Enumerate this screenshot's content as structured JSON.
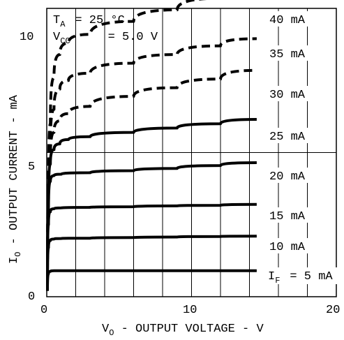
{
  "chart_data": {
    "type": "line",
    "xlabel": "V",
    "xlabel_sub": "O",
    "xlabel_rest": " - OUTPUT VOLTAGE - V",
    "ylabel": "I",
    "ylabel_sub": "O",
    "ylabel_rest": " - OUTPUT CURRENT - mA",
    "xlim": [
      0,
      20
    ],
    "ylim": [
      0,
      10
    ],
    "x_ticks": [
      "0",
      "10",
      "20"
    ],
    "y_ticks": [
      "0",
      "5",
      "10"
    ],
    "grid": true,
    "conditions": {
      "ta_sym": "T",
      "ta_sub": "A",
      "ta_val": "= 25 °C",
      "vcc_sym": "V",
      "vcc_sub": "CC",
      "vcc_val": "= 5.0 V"
    },
    "series": [
      {
        "name": "40 mA",
        "label": "40 mA",
        "style": "dashed",
        "points": [
          [
            0.05,
            0.4
          ],
          [
            0.12,
            3.5
          ],
          [
            0.25,
            6.0
          ],
          [
            0.5,
            7.6
          ],
          [
            0.9,
            8.4
          ],
          [
            1.5,
            8.8
          ],
          [
            3,
            9.1
          ],
          [
            6,
            9.55
          ],
          [
            9,
            9.95
          ],
          [
            12,
            10.35
          ],
          [
            14.5,
            10.7
          ]
        ]
      },
      {
        "name": "35 mA",
        "label": "35 mA",
        "style": "dashed",
        "points": [
          [
            0.05,
            0.4
          ],
          [
            0.12,
            3.2
          ],
          [
            0.25,
            5.2
          ],
          [
            0.5,
            6.5
          ],
          [
            0.9,
            7.2
          ],
          [
            1.5,
            7.5
          ],
          [
            3,
            7.75
          ],
          [
            6,
            8.1
          ],
          [
            9,
            8.4
          ],
          [
            12,
            8.7
          ],
          [
            14.5,
            8.95
          ]
        ]
      },
      {
        "name": "30 mA",
        "label": "30 mA",
        "style": "dashed",
        "points": [
          [
            0.05,
            0.4
          ],
          [
            0.12,
            3.0
          ],
          [
            0.25,
            4.8
          ],
          [
            0.5,
            5.7
          ],
          [
            0.9,
            6.1
          ],
          [
            1.5,
            6.35
          ],
          [
            3,
            6.6
          ],
          [
            6,
            6.95
          ],
          [
            9,
            7.25
          ],
          [
            12,
            7.55
          ],
          [
            14.5,
            7.85
          ]
        ]
      },
      {
        "name": "25 mA",
        "label": "25 mA",
        "style": "solid",
        "points": [
          [
            0.05,
            0.4
          ],
          [
            0.12,
            3.2
          ],
          [
            0.25,
            4.6
          ],
          [
            0.5,
            5.1
          ],
          [
            0.9,
            5.3
          ],
          [
            1.5,
            5.45
          ],
          [
            3,
            5.55
          ],
          [
            6,
            5.7
          ],
          [
            9,
            5.85
          ],
          [
            12,
            6.0
          ],
          [
            14.5,
            6.15
          ]
        ]
      },
      {
        "name": "20 mA",
        "label": "20 mA",
        "style": "solid",
        "points": [
          [
            0.05,
            0.4
          ],
          [
            0.12,
            3.0
          ],
          [
            0.25,
            4.0
          ],
          [
            0.5,
            4.2
          ],
          [
            1,
            4.25
          ],
          [
            3,
            4.3
          ],
          [
            6,
            4.37
          ],
          [
            9,
            4.45
          ],
          [
            12,
            4.55
          ],
          [
            14.5,
            4.65
          ]
        ]
      },
      {
        "name": "15 mA",
        "label": "15 mA",
        "style": "solid",
        "points": [
          [
            0.05,
            0.4
          ],
          [
            0.12,
            2.5
          ],
          [
            0.25,
            2.95
          ],
          [
            0.5,
            3.05
          ],
          [
            1,
            3.08
          ],
          [
            3,
            3.1
          ],
          [
            6,
            3.12
          ],
          [
            9,
            3.15
          ],
          [
            12,
            3.17
          ],
          [
            14.5,
            3.2
          ]
        ]
      },
      {
        "name": "10 mA",
        "label": "10 mA",
        "style": "solid",
        "points": [
          [
            0.05,
            0.3
          ],
          [
            0.12,
            1.7
          ],
          [
            0.25,
            1.95
          ],
          [
            0.5,
            2.0
          ],
          [
            1,
            2.02
          ],
          [
            3,
            2.03
          ],
          [
            6,
            2.05
          ],
          [
            9,
            2.07
          ],
          [
            12,
            2.09
          ],
          [
            14.5,
            2.1
          ]
        ]
      },
      {
        "name": "5 mA",
        "label_sym": "I",
        "label_sub": "F",
        "label_val": "= 5 mA",
        "style": "solid",
        "points": [
          [
            0.05,
            0.2
          ],
          [
            0.12,
            0.8
          ],
          [
            0.25,
            0.88
          ],
          [
            0.5,
            0.9
          ],
          [
            1,
            0.9
          ],
          [
            3,
            0.9
          ],
          [
            6,
            0.9
          ],
          [
            9,
            0.9
          ],
          [
            12,
            0.9
          ],
          [
            14.5,
            0.9
          ]
        ]
      }
    ]
  }
}
